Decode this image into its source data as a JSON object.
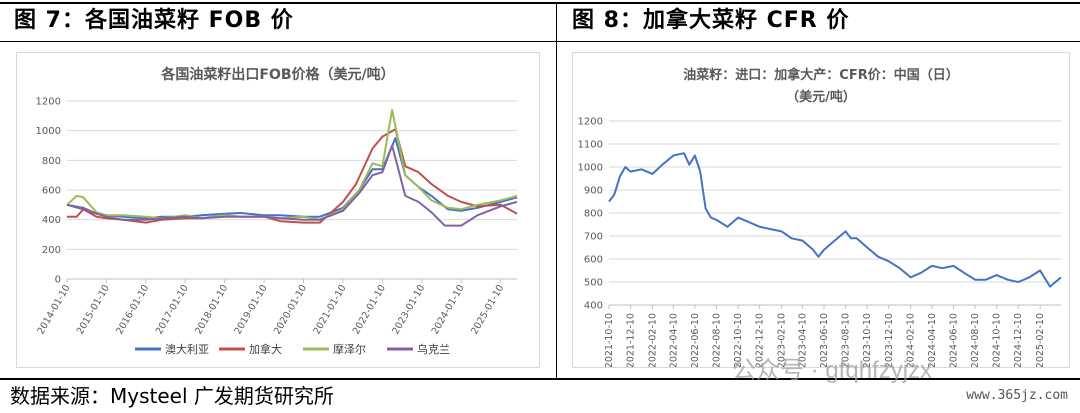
{
  "panels": {
    "left": {
      "title": "图 7：各国油菜籽 FOB 价"
    },
    "right": {
      "title": "图 8：加拿大菜籽 CFR 价"
    }
  },
  "source": "数据来源：Mysteel 广发期货研究所",
  "watermark": {
    "line": "公众号 · gfqhfzyjzx",
    "site": "www.365jz.com"
  },
  "chart_data": [
    {
      "type": "line",
      "title": "各国油菜籽出口FOB价格（美元/吨）",
      "ylim": [
        0,
        1200
      ],
      "yticks": [
        0,
        200,
        400,
        600,
        800,
        1000,
        1200
      ],
      "x_range": [
        "2014-01-10",
        "2025-06-10"
      ],
      "x_ticks": [
        "2014-01-10",
        "2015-01-10",
        "2016-01-10",
        "2017-01-10",
        "2018-01-10",
        "2019-01-10",
        "2020-01-10",
        "2021-01-10",
        "2022-01-10",
        "2023-01-10",
        "2024-01-10",
        "2025-01-10"
      ],
      "legend_position": "bottom",
      "series": [
        {
          "name": "澳大利亚",
          "color": "#4472C4",
          "points": [
            [
              "2014-01-10",
              500
            ],
            [
              "2014-06-10",
              470
            ],
            [
              "2014-10-10",
              440
            ],
            [
              "2015-01-10",
              430
            ],
            [
              "2015-06-10",
              420
            ],
            [
              "2016-01-10",
              410
            ],
            [
              "2016-06-10",
              420
            ],
            [
              "2017-01-10",
              420
            ],
            [
              "2017-06-10",
              430
            ],
            [
              "2018-01-10",
              440
            ],
            [
              "2018-06-10",
              445
            ],
            [
              "2019-01-10",
              430
            ],
            [
              "2019-06-10",
              430
            ],
            [
              "2020-01-10",
              420
            ],
            [
              "2020-06-10",
              420
            ],
            [
              "2021-01-10",
              480
            ],
            [
              "2021-06-10",
              600
            ],
            [
              "2021-10-10",
              740
            ],
            [
              "2022-01-10",
              740
            ],
            [
              "2022-05-10",
              950
            ],
            [
              "2022-08-10",
              700
            ],
            [
              "2022-12-10",
              620
            ],
            [
              "2023-04-10",
              560
            ],
            [
              "2023-09-10",
              470
            ],
            [
              "2024-01-10",
              460
            ],
            [
              "2024-06-10",
              480
            ],
            [
              "2025-01-10",
              520
            ],
            [
              "2025-06-10",
              550
            ]
          ]
        },
        {
          "name": "加拿大",
          "color": "#C0504D",
          "points": [
            [
              "2014-01-10",
              420
            ],
            [
              "2014-04-10",
              420
            ],
            [
              "2014-06-10",
              470
            ],
            [
              "2014-10-10",
              420
            ],
            [
              "2015-01-10",
              410
            ],
            [
              "2015-06-10",
              400
            ],
            [
              "2016-01-10",
              380
            ],
            [
              "2016-06-10",
              400
            ],
            [
              "2017-01-10",
              410
            ],
            [
              "2017-06-10",
              410
            ],
            [
              "2018-01-10",
              430
            ],
            [
              "2018-06-10",
              420
            ],
            [
              "2019-01-10",
              420
            ],
            [
              "2019-06-10",
              390
            ],
            [
              "2020-01-10",
              380
            ],
            [
              "2020-06-10",
              380
            ],
            [
              "2021-01-10",
              520
            ],
            [
              "2021-05-10",
              640
            ],
            [
              "2021-10-10",
              880
            ],
            [
              "2022-01-10",
              960
            ],
            [
              "2022-05-10",
              1010
            ],
            [
              "2022-08-10",
              760
            ],
            [
              "2022-12-10",
              720
            ],
            [
              "2023-04-10",
              640
            ],
            [
              "2023-09-10",
              560
            ],
            [
              "2024-01-10",
              520
            ],
            [
              "2024-06-10",
              490
            ],
            [
              "2025-01-10",
              500
            ],
            [
              "2025-06-10",
              440
            ]
          ]
        },
        {
          "name": "摩泽尔",
          "color": "#9BBB59",
          "points": [
            [
              "2014-01-10",
              500
            ],
            [
              "2014-04-10",
              560
            ],
            [
              "2014-06-10",
              550
            ],
            [
              "2014-10-10",
              450
            ],
            [
              "2015-01-10",
              430
            ],
            [
              "2015-06-10",
              430
            ],
            [
              "2016-01-10",
              420
            ],
            [
              "2016-06-10",
              410
            ],
            [
              "2017-01-10",
              430
            ],
            [
              "2017-06-10",
              410
            ],
            [
              "2018-01-10",
              430
            ],
            [
              "2018-06-10",
              420
            ],
            [
              "2019-01-10",
              420
            ],
            [
              "2019-06-10",
              410
            ],
            [
              "2020-01-10",
              420
            ],
            [
              "2020-06-10",
              400
            ],
            [
              "2021-01-10",
              470
            ],
            [
              "2021-06-10",
              600
            ],
            [
              "2021-10-10",
              780
            ],
            [
              "2022-01-10",
              760
            ],
            [
              "2022-04-10",
              1140
            ],
            [
              "2022-08-10",
              700
            ],
            [
              "2022-12-10",
              620
            ],
            [
              "2023-04-10",
              530
            ],
            [
              "2023-09-10",
              480
            ],
            [
              "2024-01-10",
              470
            ],
            [
              "2024-06-10",
              500
            ],
            [
              "2025-01-10",
              530
            ],
            [
              "2025-06-10",
              560
            ]
          ]
        },
        {
          "name": "乌克兰",
          "color": "#8064A2",
          "points": [
            [
              "2014-01-10",
              500
            ],
            [
              "2014-06-10",
              480
            ],
            [
              "2014-10-10",
              440
            ],
            [
              "2015-01-10",
              420
            ],
            [
              "2015-06-10",
              400
            ],
            [
              "2016-01-10",
              400
            ],
            [
              "2016-06-10",
              410
            ],
            [
              "2017-01-10",
              420
            ],
            [
              "2017-06-10",
              410
            ],
            [
              "2018-01-10",
              420
            ],
            [
              "2018-06-10",
              420
            ],
            [
              "2019-01-10",
              420
            ],
            [
              "2019-06-10",
              410
            ],
            [
              "2020-01-10",
              400
            ],
            [
              "2020-06-10",
              400
            ],
            [
              "2021-01-10",
              460
            ],
            [
              "2021-06-10",
              580
            ],
            [
              "2021-10-10",
              700
            ],
            [
              "2022-01-10",
              720
            ],
            [
              "2022-04-10",
              900
            ],
            [
              "2022-08-10",
              560
            ],
            [
              "2022-12-10",
              520
            ],
            [
              "2023-04-10",
              450
            ],
            [
              "2023-08-10",
              360
            ],
            [
              "2024-01-10",
              360
            ],
            [
              "2024-06-10",
              430
            ],
            [
              "2025-01-10",
              490
            ],
            [
              "2025-06-10",
              520
            ]
          ]
        }
      ]
    },
    {
      "type": "line",
      "title": [
        "油菜籽：进口：加拿大产：CFR价：中国（日）",
        "（美元/吨）"
      ],
      "ylim": [
        400,
        1200
      ],
      "yticks": [
        400,
        500,
        600,
        700,
        800,
        900,
        1000,
        1100,
        1200
      ],
      "x_range": [
        "2021-10-10",
        "2025-04-10"
      ],
      "x_ticks": [
        "2021-10-10",
        "2021-12-10",
        "2022-02-10",
        "2022-04-10",
        "2022-06-10",
        "2022-08-10",
        "2022-10-10",
        "2022-12-10",
        "2023-02-10",
        "2023-04-10",
        "2023-06-10",
        "2023-08-10",
        "2023-10-10",
        "2023-12-10",
        "2024-02-10",
        "2024-04-10",
        "2024-06-10",
        "2024-08-10",
        "2024-10-10",
        "2024-12-10",
        "2025-02-10"
      ],
      "series": [
        {
          "name": "",
          "color": "#4472C4",
          "points": [
            [
              "2021-10-10",
              850
            ],
            [
              "2021-10-25",
              880
            ],
            [
              "2021-11-10",
              960
            ],
            [
              "2021-11-25",
              1000
            ],
            [
              "2021-12-10",
              980
            ],
            [
              "2022-01-10",
              990
            ],
            [
              "2022-02-10",
              970
            ],
            [
              "2022-03-10",
              1010
            ],
            [
              "2022-04-10",
              1050
            ],
            [
              "2022-05-10",
              1060
            ],
            [
              "2022-05-25",
              1010
            ],
            [
              "2022-06-10",
              1050
            ],
            [
              "2022-06-25",
              980
            ],
            [
              "2022-07-10",
              820
            ],
            [
              "2022-07-25",
              780
            ],
            [
              "2022-08-10",
              770
            ],
            [
              "2022-09-10",
              740
            ],
            [
              "2022-10-10",
              780
            ],
            [
              "2022-11-10",
              760
            ],
            [
              "2022-12-10",
              740
            ],
            [
              "2023-01-10",
              730
            ],
            [
              "2023-02-10",
              720
            ],
            [
              "2023-03-10",
              690
            ],
            [
              "2023-04-10",
              680
            ],
            [
              "2023-05-10",
              640
            ],
            [
              "2023-05-25",
              610
            ],
            [
              "2023-06-10",
              640
            ],
            [
              "2023-07-10",
              680
            ],
            [
              "2023-08-10",
              720
            ],
            [
              "2023-08-25",
              690
            ],
            [
              "2023-09-10",
              690
            ],
            [
              "2023-10-10",
              650
            ],
            [
              "2023-11-10",
              610
            ],
            [
              "2023-12-10",
              590
            ],
            [
              "2024-01-10",
              560
            ],
            [
              "2024-02-10",
              520
            ],
            [
              "2024-03-10",
              540
            ],
            [
              "2024-04-10",
              570
            ],
            [
              "2024-05-10",
              560
            ],
            [
              "2024-06-10",
              570
            ],
            [
              "2024-07-10",
              540
            ],
            [
              "2024-08-10",
              510
            ],
            [
              "2024-09-10",
              510
            ],
            [
              "2024-10-10",
              530
            ],
            [
              "2024-11-10",
              510
            ],
            [
              "2024-12-10",
              500
            ],
            [
              "2025-01-10",
              520
            ],
            [
              "2025-02-10",
              550
            ],
            [
              "2025-03-10",
              480
            ],
            [
              "2025-04-10",
              520
            ]
          ]
        }
      ]
    }
  ]
}
